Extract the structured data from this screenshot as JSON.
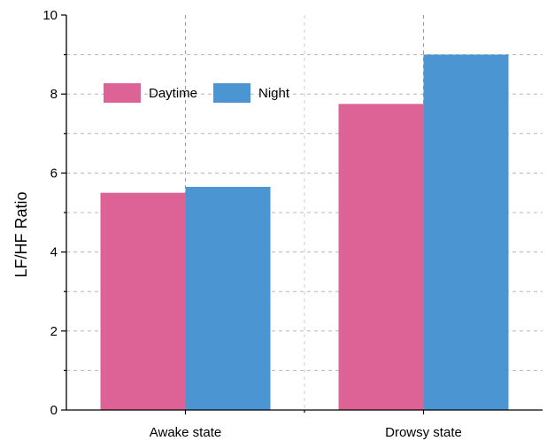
{
  "chart_data": {
    "type": "bar",
    "title": "",
    "xlabel": "",
    "ylabel": "LF/HF Ratio",
    "categories": [
      "Awake state",
      "Drowsy state"
    ],
    "series": [
      {
        "name": "Daytime",
        "color": "#dd6296",
        "values": [
          5.5,
          7.75
        ]
      },
      {
        "name": "Night",
        "color": "#4b96d2",
        "values": [
          5.65,
          9.0
        ]
      }
    ],
    "ylim": [
      0,
      10
    ],
    "yticks": [
      "0",
      "2",
      "4",
      "6",
      "8",
      "10"
    ],
    "grid": true,
    "legend_position": "top-left"
  }
}
